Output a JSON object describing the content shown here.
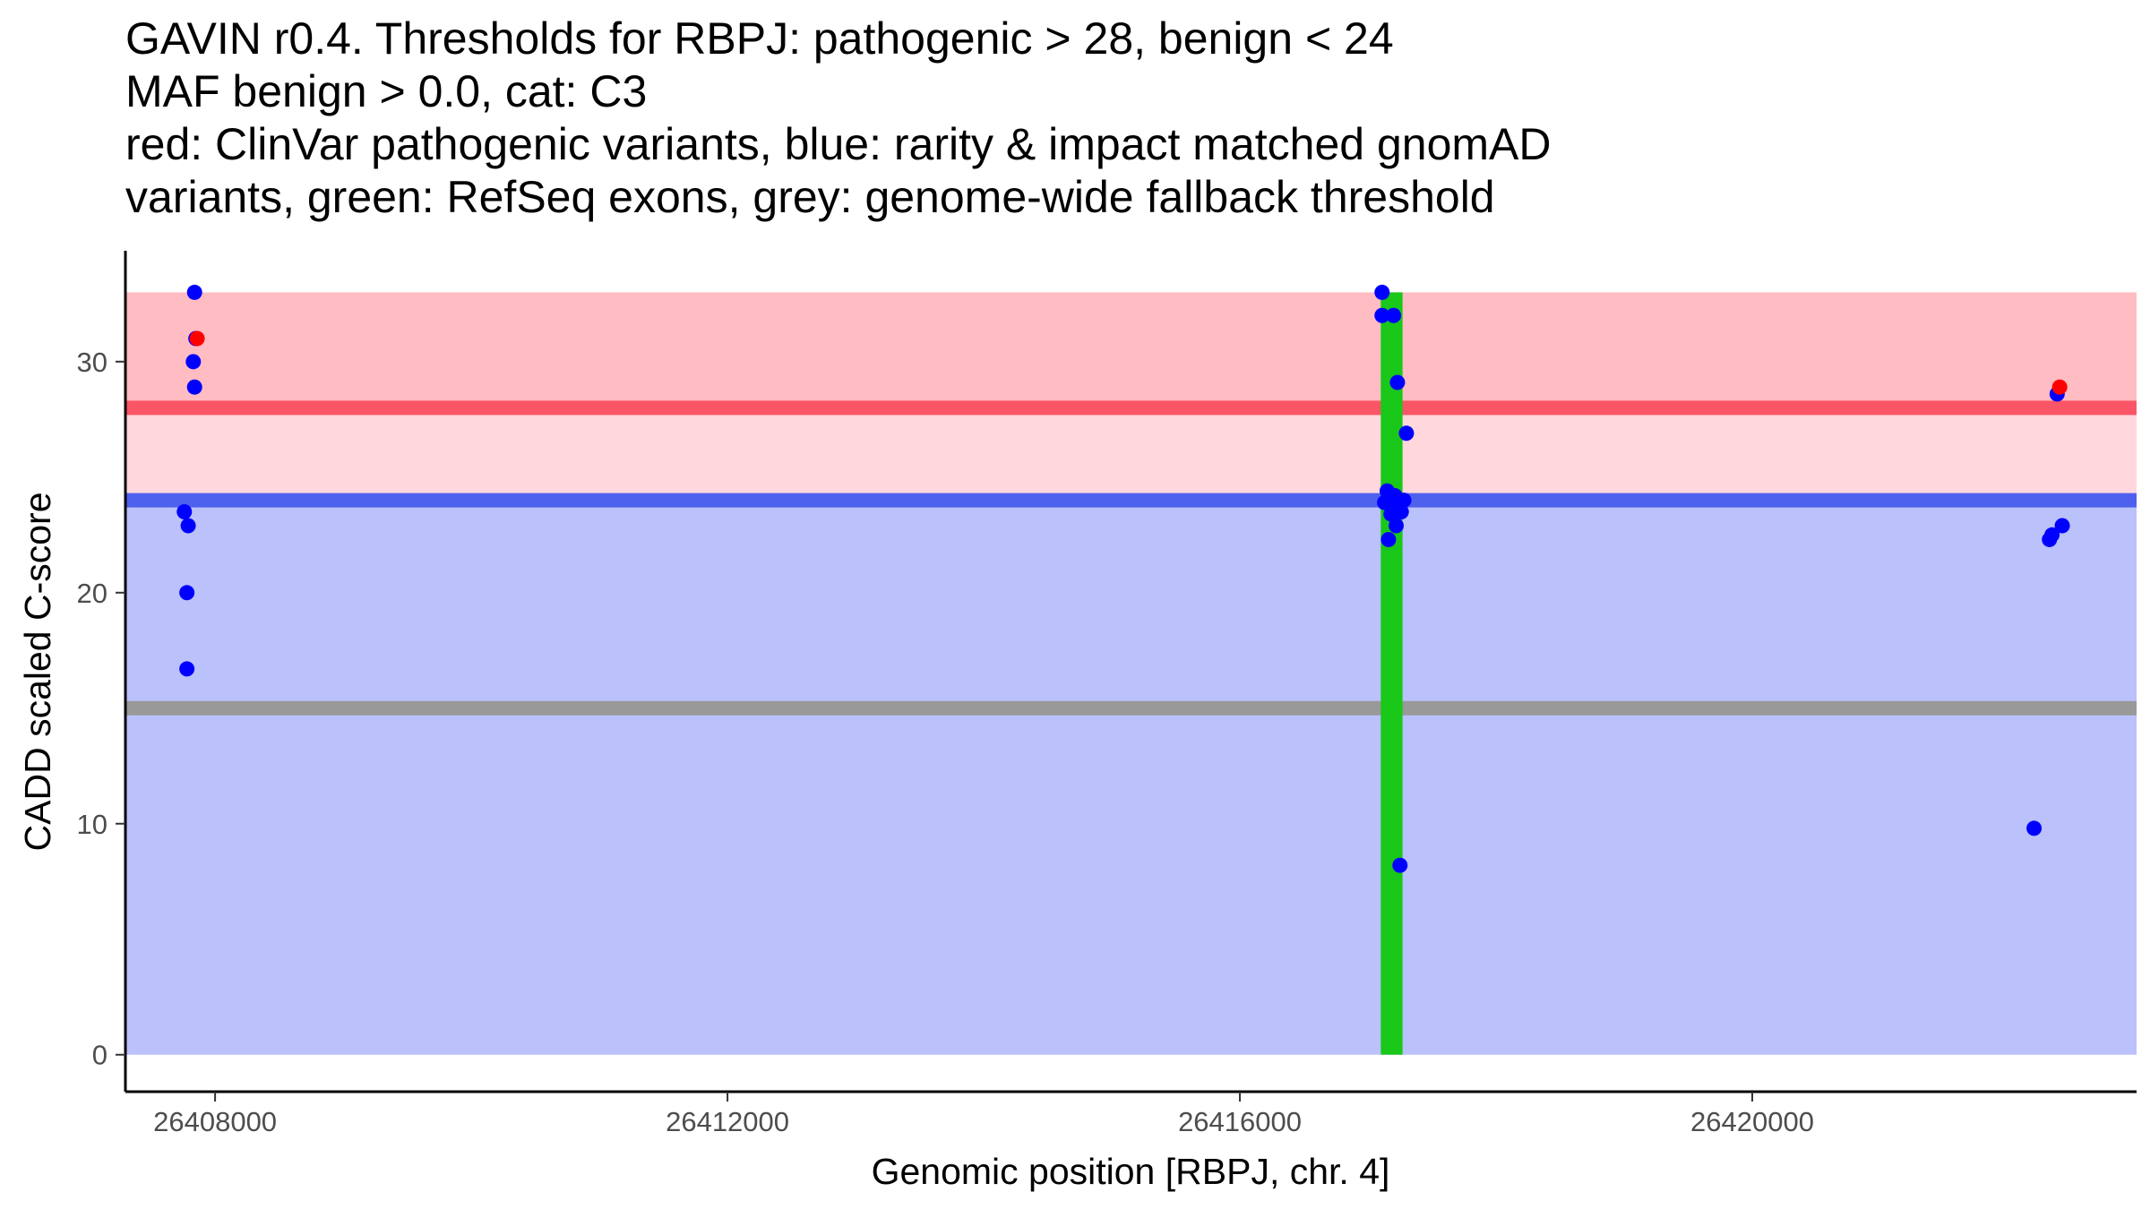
{
  "chart_data": {
    "type": "scatter",
    "title": [
      "GAVIN r0.4. Thresholds for RBPJ: pathogenic > 28, benign < 24",
      "MAF benign > 0.0, cat: C3",
      "red: ClinVar pathogenic variants, blue: rarity & impact matched gnomAD",
      "variants, green: RefSeq exons, grey: genome-wide fallback threshold"
    ],
    "xlabel": "Genomic position [RBPJ, chr. 4]",
    "ylabel": "CADD scaled C-score",
    "xlim": [
      26407300,
      26423000
    ],
    "ylim": [
      -1.6,
      34.8
    ],
    "x_ticks": [
      26408000,
      26412000,
      26416000,
      26420000
    ],
    "y_ticks": [
      0,
      10,
      20,
      30
    ],
    "x_tick_labels": [
      "26408000",
      "26412000",
      "26416000",
      "26420000"
    ],
    "y_tick_labels": [
      "0",
      "10",
      "20",
      "30"
    ],
    "regions": [
      {
        "name": "benign-region",
        "ymin": 0,
        "ymax": 24,
        "color": "#bbc1fa"
      },
      {
        "name": "intermediate-region",
        "ymin": 24,
        "ymax": 28,
        "color": "#ffd7dc"
      },
      {
        "name": "pathogenic-region",
        "ymin": 28,
        "ymax": 33,
        "color": "#ffbcc2"
      }
    ],
    "threshold_lines": [
      {
        "name": "pathogenic-threshold",
        "y": 28,
        "color": "#fa5566"
      },
      {
        "name": "benign-threshold",
        "y": 24,
        "color": "#4d61ee"
      },
      {
        "name": "fallback-threshold",
        "y": 15,
        "color": "#999999"
      }
    ],
    "exons": [
      {
        "xmin": 26417100,
        "xmax": 26417270,
        "ymin": 0,
        "ymax": 33,
        "color": "#19c819"
      }
    ],
    "series": [
      {
        "name": "gnomAD matched variants",
        "color": "#0000ff",
        "points": [
          {
            "x": 26407840,
            "y": 33
          },
          {
            "x": 26407850,
            "y": 31
          },
          {
            "x": 26407830,
            "y": 30
          },
          {
            "x": 26407840,
            "y": 28.9
          },
          {
            "x": 26407760,
            "y": 23.5
          },
          {
            "x": 26407790,
            "y": 22.9
          },
          {
            "x": 26407780,
            "y": 20
          },
          {
            "x": 26407780,
            "y": 16.7
          },
          {
            "x": 26417110,
            "y": 33
          },
          {
            "x": 26417110,
            "y": 32
          },
          {
            "x": 26417200,
            "y": 32
          },
          {
            "x": 26417230,
            "y": 29.1
          },
          {
            "x": 26417300,
            "y": 26.9
          },
          {
            "x": 26417150,
            "y": 24.4
          },
          {
            "x": 26417210,
            "y": 24.2
          },
          {
            "x": 26417280,
            "y": 24
          },
          {
            "x": 26417130,
            "y": 23.9
          },
          {
            "x": 26417200,
            "y": 23.7
          },
          {
            "x": 26417260,
            "y": 23.5
          },
          {
            "x": 26417180,
            "y": 23.4
          },
          {
            "x": 26417220,
            "y": 22.9
          },
          {
            "x": 26417160,
            "y": 22.3
          },
          {
            "x": 26417250,
            "y": 8.2
          },
          {
            "x": 26422380,
            "y": 28.6
          },
          {
            "x": 26422340,
            "y": 22.5
          },
          {
            "x": 26422320,
            "y": 22.3
          },
          {
            "x": 26422420,
            "y": 22.9
          },
          {
            "x": 26422200,
            "y": 9.8
          }
        ]
      },
      {
        "name": "ClinVar pathogenic variants",
        "color": "#ff0000",
        "points": [
          {
            "x": 26407860,
            "y": 31
          },
          {
            "x": 26422400,
            "y": 28.9
          }
        ]
      }
    ]
  }
}
